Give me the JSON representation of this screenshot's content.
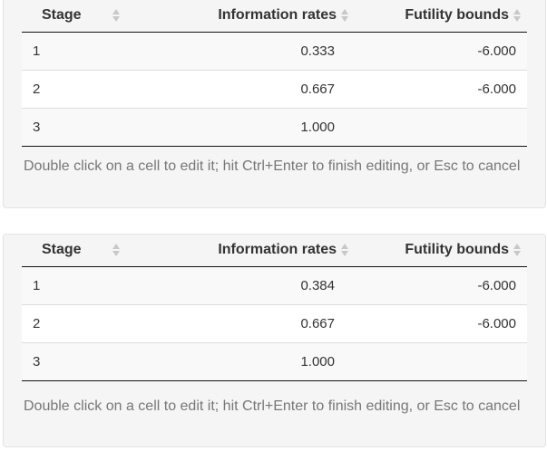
{
  "tables": [
    {
      "headers": {
        "stage": "Stage",
        "info": "Information rates",
        "futility": "Futility bounds"
      },
      "rows": [
        {
          "stage": "1",
          "info": "0.333",
          "futility": "-6.000"
        },
        {
          "stage": "2",
          "info": "0.667",
          "futility": "-6.000"
        },
        {
          "stage": "3",
          "info": "1.000",
          "futility": ""
        }
      ],
      "hint": "Double click on a cell to edit it; hit Ctrl+Enter to finish editing, or Esc to cancel"
    },
    {
      "headers": {
        "stage": "Stage",
        "info": "Information rates",
        "futility": "Futility bounds"
      },
      "rows": [
        {
          "stage": "1",
          "info": "0.384",
          "futility": "-6.000"
        },
        {
          "stage": "2",
          "info": "0.667",
          "futility": "-6.000"
        },
        {
          "stage": "3",
          "info": "1.000",
          "futility": ""
        }
      ],
      "hint": "Double click on a cell to edit it; hit Ctrl+Enter to finish editing, or Esc to cancel"
    }
  ]
}
